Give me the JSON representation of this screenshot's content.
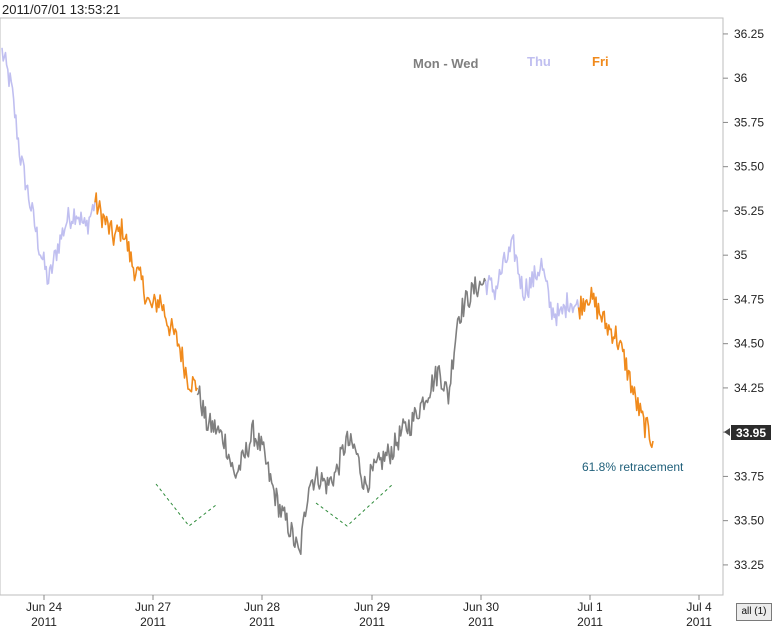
{
  "timestamp": "2011/07/01 13:53:21",
  "all_button_label": "all (1)",
  "colors": {
    "mon_wed": "#7f7f7f",
    "thu": "#c0bff0",
    "fri": "#f08a1c",
    "annotation": "#1f5f7a",
    "guide": "#2e8b3a"
  },
  "legend": [
    {
      "label": "Mon - Wed",
      "color": "#7f7f7f"
    },
    {
      "label": "Thu",
      "color": "#c0bff0"
    },
    {
      "label": "Fri",
      "color": "#f08a1c"
    }
  ],
  "annotation": "61.8% retracement",
  "chart_data": {
    "type": "line",
    "ylim": [
      33.08,
      36.34
    ],
    "y_ticks": [
      "33.25",
      "33.50",
      "33.75",
      "34",
      "34.25",
      "34.50",
      "34.75",
      "35",
      "35.25",
      "35.50",
      "35.75",
      "36",
      "36.25"
    ],
    "x_ticks": [
      {
        "label": "Jun 24",
        "year": "2011"
      },
      {
        "label": "Jun 27",
        "year": "2011"
      },
      {
        "label": "Jun 28",
        "year": "2011"
      },
      {
        "label": "Jun 29",
        "year": "2011"
      },
      {
        "label": "Jun 30",
        "year": "2011"
      },
      {
        "label": "Jul 1",
        "year": "2011"
      },
      {
        "label": "Jul 4",
        "year": "2011"
      }
    ],
    "last_price": "33.95",
    "series": [
      {
        "name": "Thu",
        "color": "#c0bff0",
        "points": [
          [
            0,
            36.15
          ],
          [
            1,
            35.95
          ],
          [
            2,
            35.55
          ],
          [
            3,
            35.3
          ],
          [
            4,
            35.05
          ],
          [
            5,
            34.85
          ],
          [
            6,
            35.05
          ],
          [
            7,
            35.2
          ],
          [
            8,
            35.25
          ],
          [
            9,
            35.15
          ],
          [
            10,
            35.3
          ]
        ]
      },
      {
        "name": "Fri",
        "color": "#f08a1c",
        "points": [
          [
            10,
            35.3
          ],
          [
            11,
            35.2
          ],
          [
            12,
            35.1
          ],
          [
            13,
            35.15
          ],
          [
            14,
            34.95
          ],
          [
            15,
            34.85
          ],
          [
            16,
            34.7
          ],
          [
            17,
            34.75
          ],
          [
            18,
            34.6
          ],
          [
            19,
            34.5
          ],
          [
            20,
            34.3
          ],
          [
            21,
            34.25
          ]
        ]
      },
      {
        "name": "Mon - Wed",
        "color": "#7f7f7f",
        "points": [
          [
            21,
            34.25
          ],
          [
            22,
            34.05
          ],
          [
            23,
            34.02
          ],
          [
            24,
            33.95
          ],
          [
            25,
            33.75
          ],
          [
            26,
            33.85
          ],
          [
            27,
            34.0
          ],
          [
            28,
            33.9
          ],
          [
            29,
            33.7
          ],
          [
            30,
            33.55
          ],
          [
            31,
            33.45
          ],
          [
            32,
            33.3
          ],
          [
            33,
            33.72
          ],
          [
            34,
            33.75
          ],
          [
            35,
            33.7
          ],
          [
            36,
            33.78
          ],
          [
            37,
            33.95
          ],
          [
            38,
            33.9
          ],
          [
            39,
            33.7
          ],
          [
            40,
            33.78
          ],
          [
            41,
            33.85
          ],
          [
            42,
            33.9
          ],
          [
            43,
            34.0
          ],
          [
            44,
            34.05
          ],
          [
            45,
            34.15
          ],
          [
            46,
            34.25
          ],
          [
            47,
            34.35
          ],
          [
            48,
            34.2
          ],
          [
            49,
            34.65
          ],
          [
            50,
            34.75
          ],
          [
            51,
            34.82
          ],
          [
            52,
            34.85
          ]
        ]
      },
      {
        "name": "Thu",
        "color": "#c0bff0",
        "points": [
          [
            52,
            34.85
          ],
          [
            53,
            34.8
          ],
          [
            54,
            34.95
          ],
          [
            55,
            35.05
          ],
          [
            56,
            34.8
          ],
          [
            57,
            34.85
          ],
          [
            58,
            34.95
          ],
          [
            59,
            34.7
          ],
          [
            60,
            34.65
          ],
          [
            61,
            34.75
          ],
          [
            62,
            34.7
          ]
        ]
      },
      {
        "name": "Fri",
        "color": "#f08a1c",
        "points": [
          [
            62,
            34.7
          ],
          [
            63,
            34.78
          ],
          [
            64,
            34.7
          ],
          [
            65,
            34.6
          ],
          [
            66,
            34.55
          ],
          [
            67,
            34.4
          ],
          [
            68,
            34.2
          ],
          [
            69,
            34.05
          ],
          [
            70,
            33.95
          ]
        ]
      }
    ],
    "guides": [
      [
        [
          0,
          33.65
        ],
        [
          5,
          33.42
        ],
        [
          9,
          33.52
        ]
      ],
      [
        [
          22,
          33.55
        ],
        [
          29,
          33.42
        ],
        [
          37,
          33.65
        ]
      ]
    ]
  }
}
